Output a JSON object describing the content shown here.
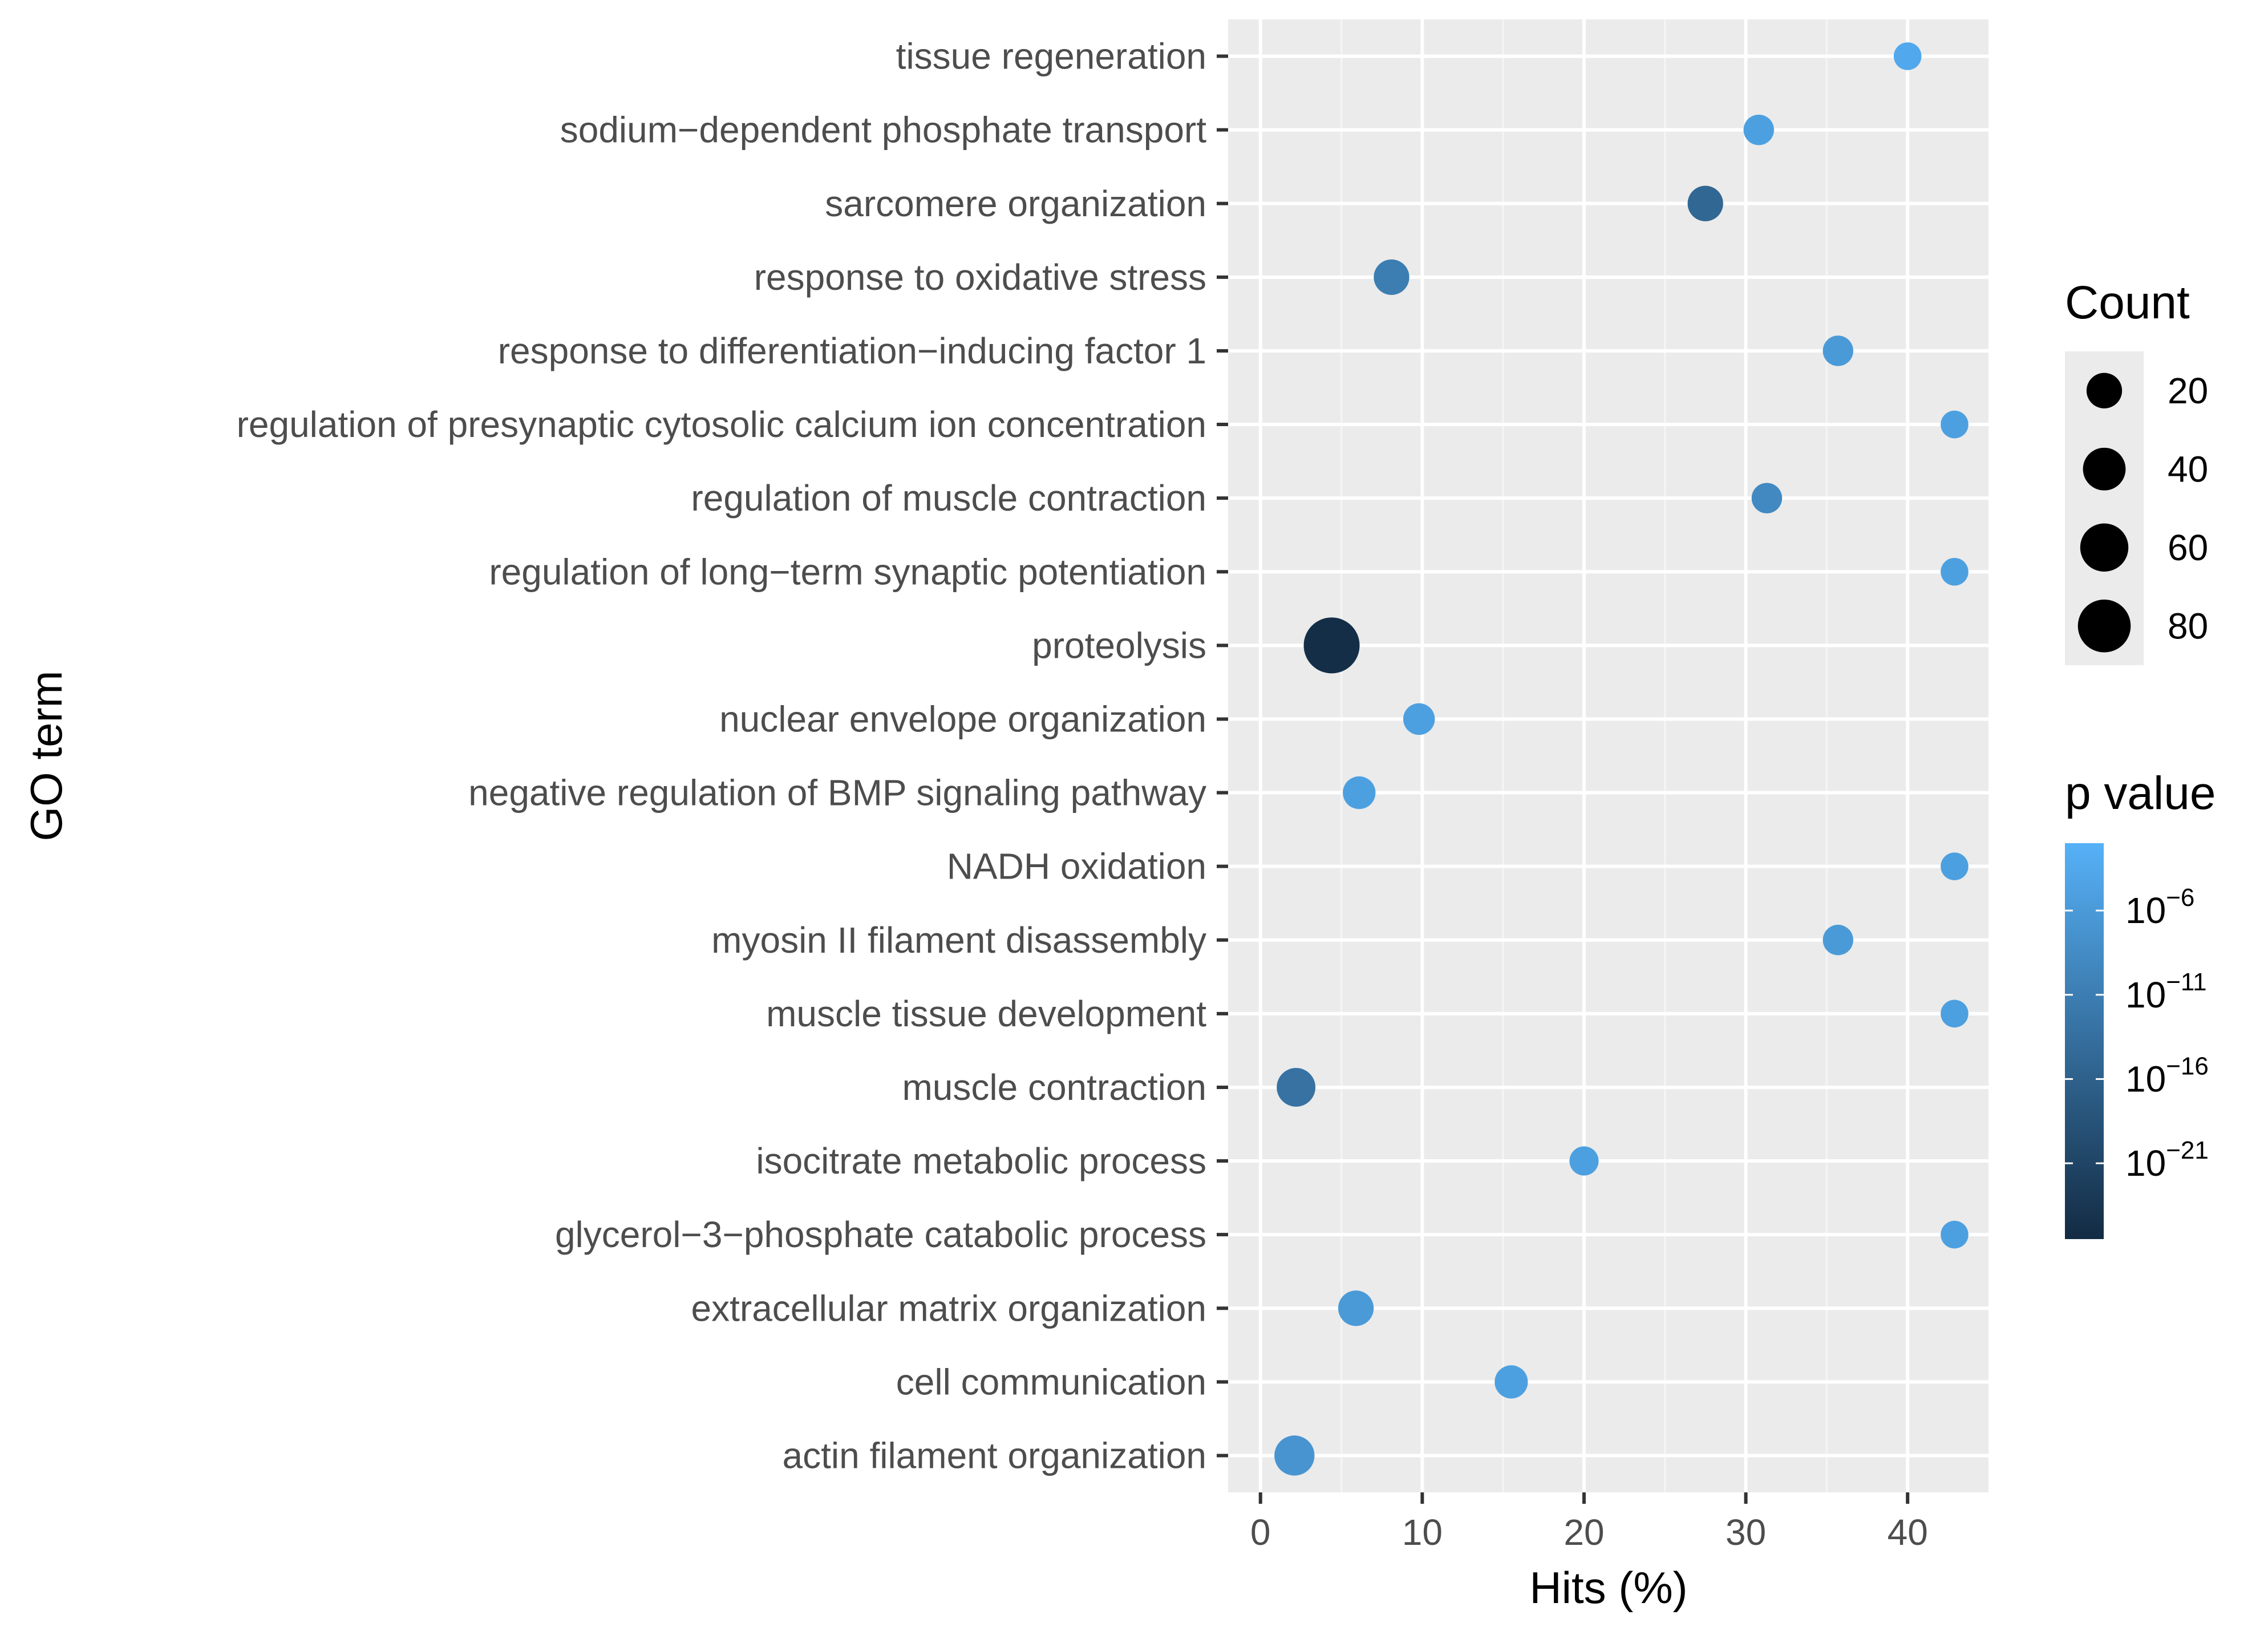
{
  "chart_data": {
    "type": "scatter",
    "subtype": "bubble",
    "title": "",
    "xlabel": "Hits (%)",
    "ylabel": "GO term",
    "xlim": [
      -2,
      45
    ],
    "xticks": [
      0,
      10,
      20,
      30,
      40
    ],
    "grid": true,
    "points": [
      {
        "term": "tissue regeneration",
        "hits": 40.0,
        "count": 6,
        "log10_p": -3.5
      },
      {
        "term": "sodium−dependent phosphate transport",
        "hits": 30.8,
        "count": 10,
        "log10_p": -5
      },
      {
        "term": "sarcomere organization",
        "hits": 27.5,
        "count": 20,
        "log10_p": -15
      },
      {
        "term": "response to oxidative stress",
        "hits": 8.1,
        "count": 20,
        "log10_p": -11
      },
      {
        "term": "response to differentiation−inducing factor 1",
        "hits": 35.7,
        "count": 10,
        "log10_p": -6
      },
      {
        "term": "regulation of presynaptic cytosolic calcium ion concentration",
        "hits": 42.9,
        "count": 6,
        "log10_p": -5
      },
      {
        "term": "regulation of muscle contraction",
        "hits": 31.3,
        "count": 10,
        "log10_p": -9
      },
      {
        "term": "regulation of long−term synaptic potentiation",
        "hits": 42.9,
        "count": 6,
        "log10_p": -5
      },
      {
        "term": "proteolysis",
        "hits": 4.4,
        "count": 95,
        "log10_p": -25
      },
      {
        "term": "nuclear envelope organization",
        "hits": 9.8,
        "count": 12,
        "log10_p": -5
      },
      {
        "term": "negative regulation of BMP signaling pathway",
        "hits": 6.1,
        "count": 14,
        "log10_p": -5
      },
      {
        "term": "NADH oxidation",
        "hits": 42.9,
        "count": 6,
        "log10_p": -5
      },
      {
        "term": "myosin II filament disassembly",
        "hits": 35.7,
        "count": 10,
        "log10_p": -6
      },
      {
        "term": "muscle tissue development",
        "hits": 42.9,
        "count": 6,
        "log10_p": -5
      },
      {
        "term": "muscle contraction",
        "hits": 2.2,
        "count": 28,
        "log10_p": -13
      },
      {
        "term": "isocitrate metabolic process",
        "hits": 20.0,
        "count": 8,
        "log10_p": -5
      },
      {
        "term": "glycerol−3−phosphate catabolic process",
        "hits": 42.9,
        "count": 6,
        "log10_p": -5
      },
      {
        "term": "extracellular matrix organization",
        "hits": 5.9,
        "count": 20,
        "log10_p": -6
      },
      {
        "term": "cell communication",
        "hits": 15.5,
        "count": 15,
        "log10_p": -5
      },
      {
        "term": "actin filament organization",
        "hits": 2.1,
        "count": 32,
        "log10_p": -7
      }
    ],
    "size_legend": {
      "title": "Count",
      "values": [
        20,
        40,
        60,
        80
      ]
    },
    "color_legend": {
      "title": "p value",
      "log10_range": [
        -25.5,
        -2
      ],
      "low_color": "#132b43",
      "high_color": "#56b1f7",
      "ticks": [
        {
          "log10": -6,
          "base": "10",
          "exp": "−6"
        },
        {
          "log10": -11,
          "base": "10",
          "exp": "−11"
        },
        {
          "log10": -16,
          "base": "10",
          "exp": "−16"
        },
        {
          "log10": -21,
          "base": "10",
          "exp": "−21"
        }
      ]
    }
  },
  "colors": {
    "panel_bg": "#ebebeb",
    "grid_major": "#ffffff",
    "grid_minor": "#f5f5f5",
    "tick_color": "#333333"
  }
}
